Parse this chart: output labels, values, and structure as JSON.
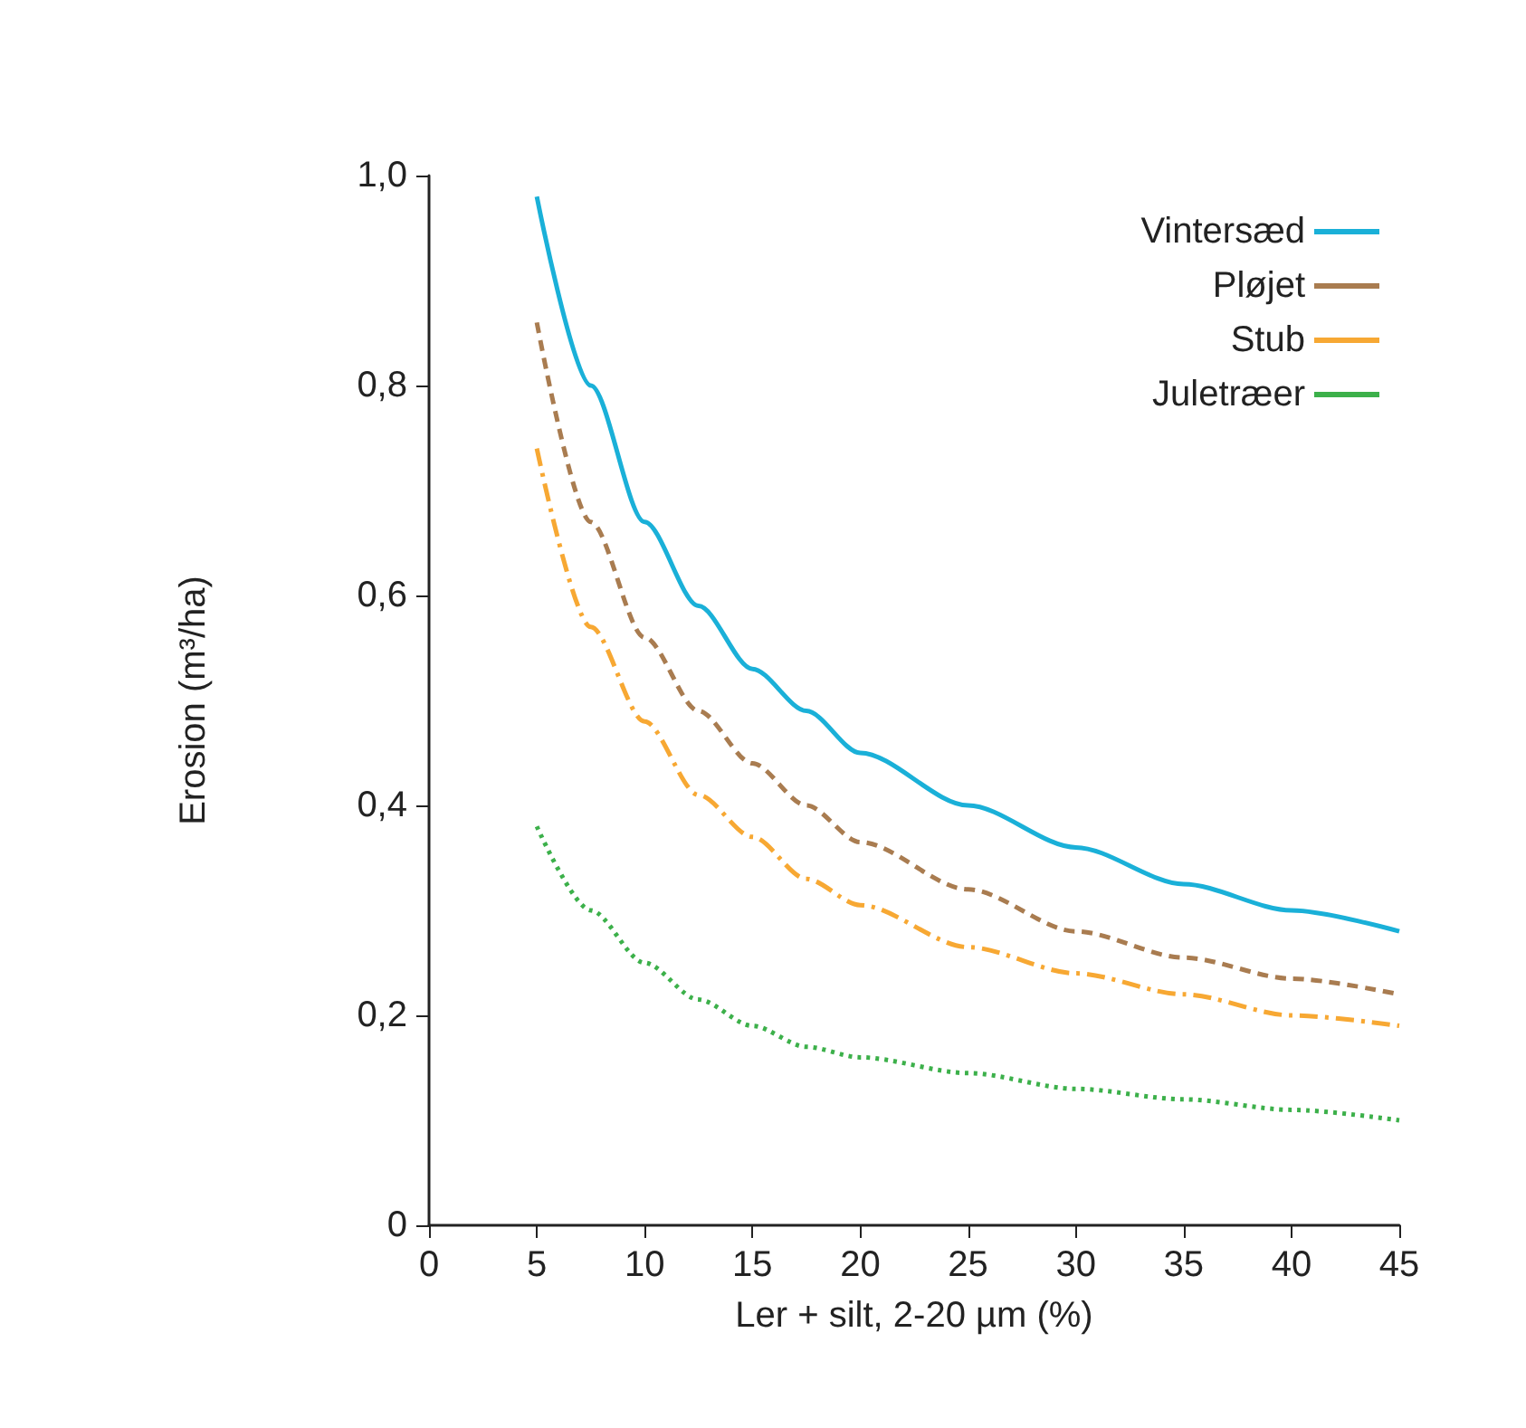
{
  "chart_data": {
    "type": "line",
    "xlabel": "Ler + silt, 2-20 µm (%)",
    "ylabel": "Erosion (m³/ha)",
    "x": [
      5,
      7.5,
      10,
      12.5,
      15,
      17.5,
      20,
      25,
      30,
      35,
      40,
      45
    ],
    "series": [
      {
        "name": "Vintersæd",
        "color": "#1ab0d8",
        "line_style": "solid",
        "values": [
          0.98,
          0.8,
          0.67,
          0.59,
          0.53,
          0.49,
          0.45,
          0.4,
          0.36,
          0.325,
          0.3,
          0.28
        ]
      },
      {
        "name": "Pløjet",
        "color": "#a97c50",
        "line_style": "dashed",
        "values": [
          0.86,
          0.67,
          0.56,
          0.49,
          0.44,
          0.4,
          0.365,
          0.32,
          0.28,
          0.255,
          0.235,
          0.22
        ]
      },
      {
        "name": "Stub",
        "color": "#f7a833",
        "line_style": "dashdot",
        "values": [
          0.74,
          0.57,
          0.48,
          0.41,
          0.37,
          0.33,
          0.305,
          0.265,
          0.24,
          0.22,
          0.2,
          0.19
        ]
      },
      {
        "name": "Juletræer",
        "color": "#3cb04a",
        "line_style": "dotted",
        "values": [
          0.38,
          0.3,
          0.25,
          0.215,
          0.19,
          0.17,
          0.16,
          0.145,
          0.13,
          0.12,
          0.11,
          0.1
        ]
      }
    ],
    "xlim": [
      0,
      45
    ],
    "xticks": [
      0,
      5,
      10,
      15,
      20,
      25,
      30,
      35,
      40,
      45
    ],
    "ylim": [
      0,
      1
    ],
    "yticks": [
      0,
      {
        "value": 0.2,
        "label": "0,2"
      },
      {
        "value": 0.4,
        "label": "0,4"
      },
      {
        "value": 0.6,
        "label": "0,6"
      },
      {
        "value": 0.8,
        "label": "0,8"
      },
      {
        "value": 1,
        "label": "1,0"
      }
    ],
    "grid": false,
    "legend": "top right",
    "marker": "none"
  }
}
